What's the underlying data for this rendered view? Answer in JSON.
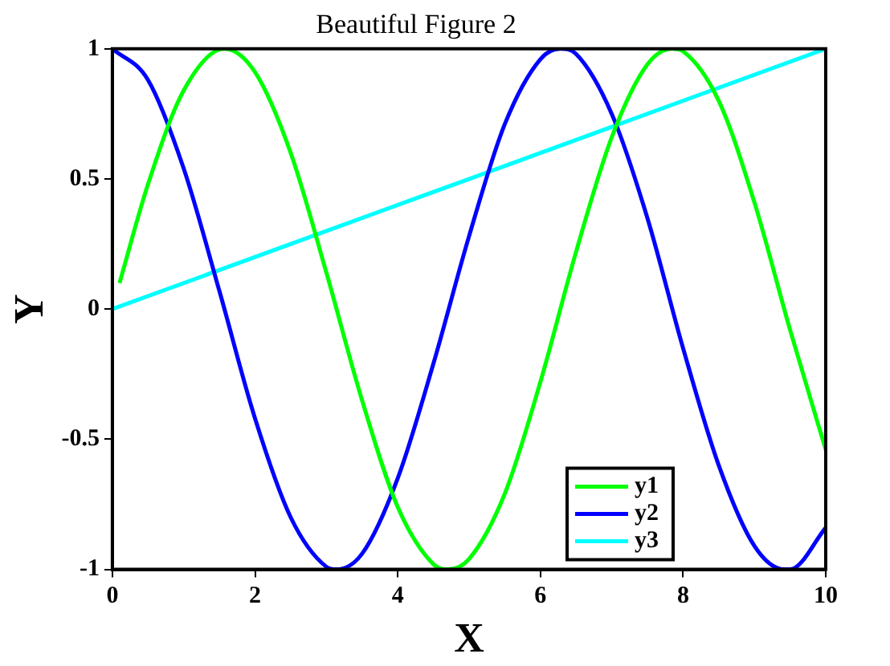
{
  "chart_data": {
    "type": "line",
    "title": "Beautiful Figure 2",
    "xlabel": "X",
    "ylabel": "Y",
    "xlim": [
      0,
      10
    ],
    "xticks": [
      0,
      2,
      4,
      6,
      8,
      10
    ],
    "ylim": [
      -1,
      1
    ],
    "yticks": [
      -1,
      -0.5,
      0,
      0.5,
      1
    ],
    "grid": false,
    "legend": "bottom right",
    "marker": "none",
    "line_style": "solid",
    "series": [
      {
        "name": "y1",
        "color": "#00ff00",
        "x": [
          0.1,
          0.5,
          1,
          1.57,
          2,
          2.5,
          3,
          3.5,
          4,
          4.5,
          4.71,
          5,
          5.5,
          6,
          6.5,
          7,
          7.5,
          7.85,
          8,
          8.5,
          9,
          9.5,
          10
        ],
        "values": [
          0.1,
          0.48,
          0.84,
          1,
          0.91,
          0.6,
          0.14,
          -0.35,
          -0.76,
          -0.98,
          -1,
          -0.96,
          -0.71,
          -0.28,
          0.22,
          0.66,
          0.94,
          1,
          0.99,
          0.8,
          0.41,
          -0.08,
          -0.54
        ]
      },
      {
        "name": "y2",
        "color": "#0000ff",
        "x": [
          0,
          0.5,
          1,
          1.5,
          2,
          2.5,
          3,
          3.14,
          3.5,
          4,
          4.5,
          5,
          5.5,
          6,
          6.28,
          6.5,
          7,
          7.5,
          8,
          8.5,
          9,
          9.42,
          9.5,
          10
        ],
        "values": [
          1,
          0.88,
          0.54,
          0.07,
          -0.42,
          -0.8,
          -0.99,
          -1,
          -0.94,
          -0.65,
          -0.21,
          0.28,
          0.71,
          0.96,
          1,
          0.98,
          0.75,
          0.35,
          -0.15,
          -0.6,
          -0.91,
          -1,
          -1,
          -0.84
        ]
      },
      {
        "name": "y3",
        "color": "#00ffff",
        "x": [
          0,
          10
        ],
        "values": [
          0,
          1
        ]
      }
    ]
  }
}
